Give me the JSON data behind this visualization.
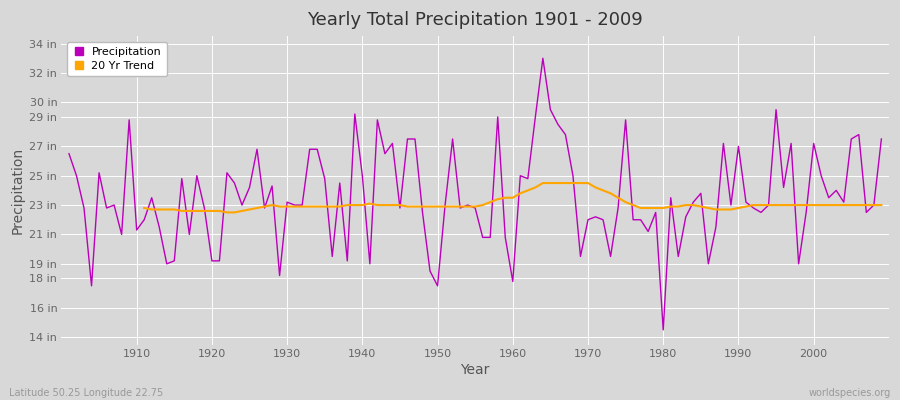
{
  "title": "Yearly Total Precipitation 1901 - 2009",
  "xlabel": "Year",
  "ylabel": "Precipitation",
  "subtitle_left": "Latitude 50.25 Longitude 22.75",
  "subtitle_right": "worldspecies.org",
  "years": [
    1901,
    1902,
    1903,
    1904,
    1905,
    1906,
    1907,
    1908,
    1909,
    1910,
    1911,
    1912,
    1913,
    1914,
    1915,
    1916,
    1917,
    1918,
    1919,
    1920,
    1921,
    1922,
    1923,
    1924,
    1925,
    1926,
    1927,
    1928,
    1929,
    1930,
    1931,
    1932,
    1933,
    1934,
    1935,
    1936,
    1937,
    1938,
    1939,
    1940,
    1941,
    1942,
    1943,
    1944,
    1945,
    1946,
    1947,
    1948,
    1949,
    1950,
    1951,
    1952,
    1953,
    1954,
    1955,
    1956,
    1957,
    1958,
    1959,
    1960,
    1961,
    1962,
    1963,
    1964,
    1965,
    1966,
    1967,
    1968,
    1969,
    1970,
    1971,
    1972,
    1973,
    1974,
    1975,
    1976,
    1977,
    1978,
    1979,
    1980,
    1981,
    1982,
    1983,
    1984,
    1985,
    1986,
    1987,
    1988,
    1989,
    1990,
    1991,
    1992,
    1993,
    1994,
    1995,
    1996,
    1997,
    1998,
    1999,
    2000,
    2001,
    2002,
    2003,
    2004,
    2005,
    2006,
    2007,
    2008,
    2009
  ],
  "precip": [
    26.5,
    25.0,
    22.8,
    17.5,
    25.2,
    22.8,
    23.0,
    21.0,
    28.8,
    21.3,
    22.0,
    23.5,
    21.5,
    19.0,
    19.2,
    24.8,
    21.0,
    25.0,
    22.8,
    19.2,
    19.2,
    25.2,
    24.5,
    23.0,
    24.2,
    26.8,
    22.8,
    24.3,
    18.2,
    23.2,
    23.0,
    23.0,
    26.8,
    26.8,
    24.8,
    19.5,
    24.5,
    19.2,
    29.2,
    25.0,
    19.0,
    28.8,
    26.5,
    27.2,
    22.8,
    27.5,
    27.5,
    22.5,
    18.5,
    17.5,
    23.0,
    27.5,
    22.8,
    23.0,
    22.8,
    20.8,
    20.8,
    29.0,
    20.8,
    17.8,
    25.0,
    24.8,
    29.0,
    33.0,
    29.5,
    28.5,
    27.8,
    25.0,
    19.5,
    22.0,
    22.2,
    22.0,
    19.5,
    22.8,
    28.8,
    22.0,
    22.0,
    21.2,
    22.5,
    14.5,
    23.5,
    19.5,
    22.2,
    23.2,
    23.8,
    19.0,
    21.5,
    27.2,
    23.0,
    27.0,
    23.2,
    22.8,
    22.5,
    23.0,
    29.5,
    24.2,
    27.2,
    19.0,
    22.5,
    27.2,
    25.0,
    23.5,
    24.0,
    23.2,
    27.5,
    27.8,
    22.5,
    23.0,
    27.5
  ],
  "trend_years": [
    1911,
    1912,
    1913,
    1914,
    1915,
    1916,
    1917,
    1918,
    1919,
    1920,
    1921,
    1922,
    1923,
    1924,
    1925,
    1926,
    1927,
    1928,
    1929,
    1930,
    1931,
    1932,
    1933,
    1934,
    1935,
    1936,
    1937,
    1938,
    1939,
    1940,
    1941,
    1942,
    1943,
    1944,
    1945,
    1946,
    1947,
    1948,
    1949,
    1950,
    1951,
    1952,
    1953,
    1954,
    1955,
    1956,
    1957,
    1958,
    1959,
    1960,
    1961,
    1962,
    1963,
    1964,
    1965,
    1966,
    1967,
    1968,
    1969,
    1970,
    1971,
    1972,
    1973,
    1974,
    1975,
    1976,
    1977,
    1978,
    1979,
    1980,
    1981,
    1982,
    1983,
    1984,
    1985,
    1986,
    1987,
    1988,
    1989,
    1990,
    1991,
    1992,
    1993,
    1994,
    1995,
    1996,
    1997,
    1998,
    1999,
    2000,
    2001,
    2002,
    2003,
    2004,
    2005,
    2006,
    2007,
    2008,
    2009
  ],
  "trend": [
    22.8,
    22.7,
    22.7,
    22.7,
    22.7,
    22.6,
    22.6,
    22.6,
    22.6,
    22.6,
    22.6,
    22.5,
    22.5,
    22.6,
    22.7,
    22.8,
    22.9,
    23.0,
    22.9,
    22.9,
    22.9,
    22.9,
    22.9,
    22.9,
    22.9,
    22.9,
    22.9,
    23.0,
    23.0,
    23.0,
    23.1,
    23.0,
    23.0,
    23.0,
    23.0,
    22.9,
    22.9,
    22.9,
    22.9,
    22.9,
    22.9,
    22.9,
    22.9,
    22.9,
    22.9,
    23.0,
    23.2,
    23.4,
    23.5,
    23.5,
    23.8,
    24.0,
    24.2,
    24.5,
    24.5,
    24.5,
    24.5,
    24.5,
    24.5,
    24.5,
    24.2,
    24.0,
    23.8,
    23.5,
    23.2,
    23.0,
    22.8,
    22.8,
    22.8,
    22.8,
    22.9,
    22.9,
    23.0,
    23.0,
    22.9,
    22.8,
    22.7,
    22.7,
    22.7,
    22.8,
    22.9,
    23.0,
    23.0,
    23.0,
    23.0,
    23.0,
    23.0,
    23.0,
    23.0,
    23.0,
    23.0,
    23.0,
    23.0,
    23.0,
    23.0,
    23.0,
    23.0,
    23.0,
    23.0
  ],
  "precip_color": "#BB00BB",
  "trend_color": "#FFA500",
  "fig_bg_color": "#D8D8D8",
  "plot_bg_color": "#D8D8D8",
  "grid_color": "#FFFFFF",
  "yticks": [
    14,
    16,
    18,
    19,
    21,
    23,
    25,
    27,
    29,
    30,
    32,
    34
  ],
  "ylim": [
    13.5,
    34.5
  ],
  "xlim": [
    1900,
    2010
  ],
  "xticks": [
    1910,
    1920,
    1930,
    1940,
    1950,
    1960,
    1970,
    1980,
    1990,
    2000
  ]
}
